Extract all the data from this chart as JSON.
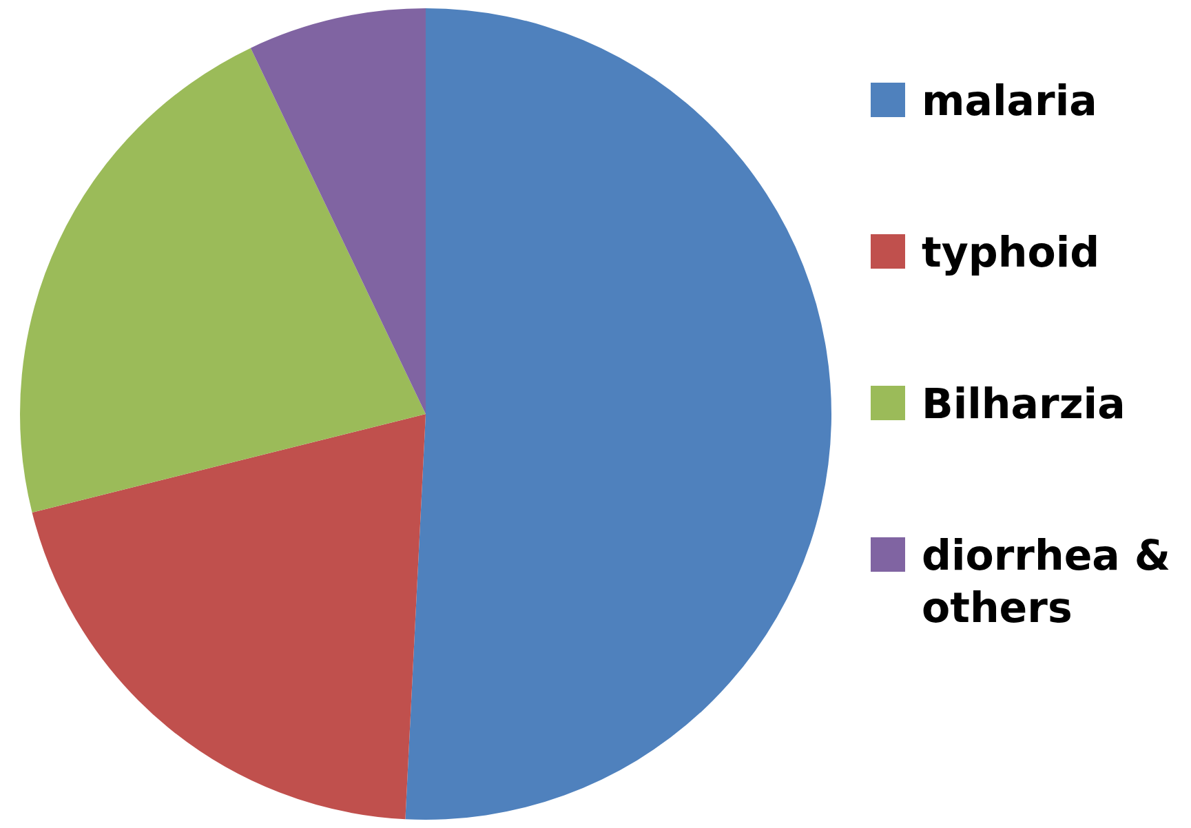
{
  "chart_data": {
    "type": "pie",
    "categories": [
      "malaria",
      "typhoid",
      "Bilharzia",
      "diorrhea & others"
    ],
    "values": [
      50.8,
      20.3,
      21.8,
      7.1
    ],
    "colors": [
      "#4f81bd",
      "#c0504d",
      "#9bbb59",
      "#8064a2"
    ],
    "legend": "right"
  }
}
